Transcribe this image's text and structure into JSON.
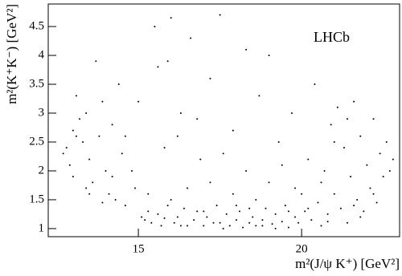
{
  "chart_data": {
    "type": "scatter",
    "x_label": "m²(J/ψ K⁺) [GeV²]",
    "y_label": "m²(K⁺K⁻) [GeV²]",
    "annotation": "LHCb",
    "xlim": [
      12.24,
      23.0
    ],
    "ylim": [
      0.86,
      4.89
    ],
    "xticks": [
      15,
      20
    ],
    "yticks": [
      1,
      1.5,
      2,
      2.5,
      3,
      3.5,
      4,
      4.5
    ],
    "color": "#000000",
    "x": [
      12.8,
      12.9,
      13.0,
      13.1,
      13.2,
      13.0,
      13.3,
      13.4,
      13.5,
      13.6,
      13.7,
      13.8,
      13.9,
      14.0,
      14.1,
      14.2,
      14.3,
      14.4,
      14.5,
      14.6,
      13.5,
      13.9,
      14.8,
      14.9,
      15.0,
      15.1,
      15.2,
      15.3,
      15.4,
      15.5,
      15.6,
      15.7,
      15.8,
      15.9,
      16.0,
      16.1,
      16.2,
      16.3,
      16.4,
      16.5,
      16.6,
      16.7,
      16.8,
      16.9,
      17.0,
      17.1,
      17.2,
      17.3,
      17.4,
      17.5,
      17.6,
      17.7,
      17.8,
      17.9,
      18.0,
      18.1,
      18.2,
      18.3,
      18.4,
      18.5,
      18.6,
      18.7,
      18.8,
      18.9,
      19.0,
      19.1,
      19.2,
      19.3,
      19.4,
      19.5,
      19.6,
      19.7,
      19.8,
      19.9,
      20.0,
      20.1,
      20.2,
      20.3,
      20.4,
      20.5,
      20.6,
      20.7,
      20.8,
      20.9,
      21.0,
      21.1,
      21.2,
      21.3,
      21.4,
      21.5,
      21.6,
      21.7,
      21.8,
      21.9,
      22.0,
      22.1,
      22.2,
      22.3,
      22.4,
      22.5,
      22.6,
      22.7,
      22.8,
      12.7,
      13.1,
      13.4,
      14.2,
      14.6,
      15.3,
      15.6,
      15.9,
      16.2,
      16.5,
      16.8,
      17.2,
      17.6,
      17.9,
      18.3,
      18.6,
      19.0,
      19.4,
      19.8,
      20.2,
      20.6,
      21.0,
      21.4,
      21.8,
      22.2,
      17.0,
      18.0,
      16.0,
      17.5,
      18.8,
      19.2,
      16.3,
      15.8,
      20.8,
      21.6,
      19.6,
      18.4
    ],
    "values": [
      2.4,
      2.1,
      2.7,
      3.3,
      2.9,
      1.9,
      2.5,
      3.0,
      2.2,
      1.8,
      3.9,
      2.6,
      3.2,
      2.0,
      1.6,
      2.8,
      1.5,
      3.5,
      2.3,
      1.4,
      1.6,
      1.45,
      2.0,
      1.7,
      3.2,
      1.2,
      1.15,
      1.3,
      1.1,
      4.5,
      1.25,
      1.05,
      2.4,
      1.4,
      4.65,
      1.1,
      1.2,
      3.0,
      1.35,
      1.05,
      4.3,
      1.15,
      1.3,
      2.2,
      1.05,
      1.2,
      3.6,
      1.1,
      1.4,
      4.7,
      1.0,
      1.25,
      1.05,
      2.7,
      1.15,
      1.3,
      1.02,
      4.1,
      1.1,
      1.2,
      1.05,
      3.3,
      1.15,
      1.35,
      4.0,
      1.08,
      1.25,
      2.5,
      1.12,
      1.4,
      1.02,
      3.0,
      1.2,
      1.1,
      1.6,
      1.3,
      2.2,
      1.15,
      3.5,
      1.45,
      1.05,
      2.0,
      1.25,
      2.8,
      1.6,
      3.1,
      1.35,
      2.4,
      1.1,
      1.9,
      3.2,
      1.5,
      2.6,
      1.3,
      2.1,
      1.7,
      2.9,
      1.45,
      2.3,
      1.9,
      2.5,
      2.0,
      2.2,
      2.3,
      2.6,
      1.7,
      1.9,
      2.6,
      1.6,
      3.8,
      3.9,
      2.6,
      1.7,
      2.9,
      1.8,
      2.3,
      1.6,
      2.0,
      1.5,
      1.8,
      2.1,
      1.7,
      1.35,
      1.8,
      2.5,
      2.9,
      1.2,
      1.6,
      1.3,
      1.4,
      1.5,
      1.1,
      1.05,
      1.0,
      1.05,
      1.18,
      1.12,
      1.4,
      1.3,
      1.35
    ]
  }
}
